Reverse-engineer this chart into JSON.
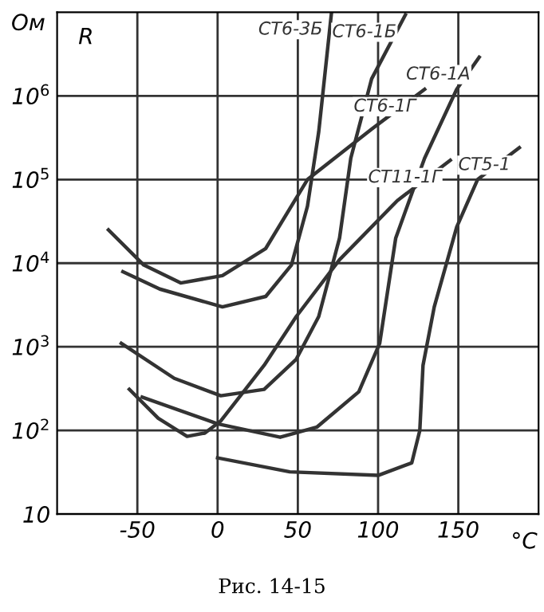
{
  "chart_data": {
    "type": "line",
    "xlabel": "°C",
    "ylabel": "Ом",
    "annotations": [
      "R",
      "Рис. 14-15"
    ],
    "log": "y",
    "grid": true,
    "legend": false,
    "marker": "none",
    "line_style": "solid",
    "xlim": [
      -100,
      200
    ],
    "xticks": [
      -50,
      0,
      50,
      100,
      150
    ],
    "ylim": [
      10,
      10000000
    ],
    "yticks": [
      10,
      {
        "value": 100,
        "label": "10$^{2}$"
      },
      {
        "value": 1000,
        "label": "10$^{3}$"
      },
      {
        "value": 10000,
        "label": "10$^{4}$"
      },
      {
        "value": 100000,
        "label": "10$^{5}$"
      },
      {
        "value": 1000000,
        "label": "10$^{6}$"
      }
    ],
    "series": [
      {
        "name": "СТ6-3Б",
        "color": "#333333",
        "x": [
          -59,
          -36,
          3,
          30,
          46,
          56,
          63,
          71
        ],
        "values": [
          7900,
          4900,
          3000,
          4000,
          9500,
          48000,
          370000,
          10000000
        ]
      },
      {
        "name": "СТ6-1Б",
        "color": "#333333",
        "x": [
          -60,
          -27,
          2,
          29,
          49,
          63,
          76,
          83,
          96,
          117
        ],
        "values": [
          1100,
          420,
          260,
          310,
          710,
          2300,
          20000,
          180000,
          1600000,
          9300000
        ]
      },
      {
        "name": "СТ6-1Г",
        "color": "#333333",
        "x": [
          -68,
          -46,
          -23,
          3,
          30,
          56,
          96,
          129
        ],
        "values": [
          25000,
          9500,
          5800,
          7100,
          15000,
          100000,
          400000,
          1200000
        ]
      },
      {
        "name": "СТ5-1",
        "color": "#333333",
        "x": [
          0,
          45,
          100,
          121,
          126,
          128,
          135,
          149,
          162,
          188
        ],
        "values": [
          47,
          32,
          29,
          41,
          100,
          600,
          3000,
          27000,
          100000,
          240000
        ]
      },
      {
        "name": "СТ11-1Г",
        "color": "#333333",
        "x": [
          -55,
          -37,
          -19,
          -8,
          2,
          29,
          49,
          76,
          112,
          145
        ],
        "values": [
          310,
          140,
          85,
          93,
          130,
          600,
          2300,
          11000,
          56000,
          170000
        ]
      },
      {
        "name": "СТ6-1А",
        "color": "#333333",
        "x": [
          -47,
          0,
          39,
          62,
          88,
          101,
          111,
          129,
          149,
          163
        ],
        "values": [
          250,
          120,
          83,
          110,
          290,
          1100,
          20000,
          180000,
          1200000,
          2900000
        ]
      }
    ]
  }
}
